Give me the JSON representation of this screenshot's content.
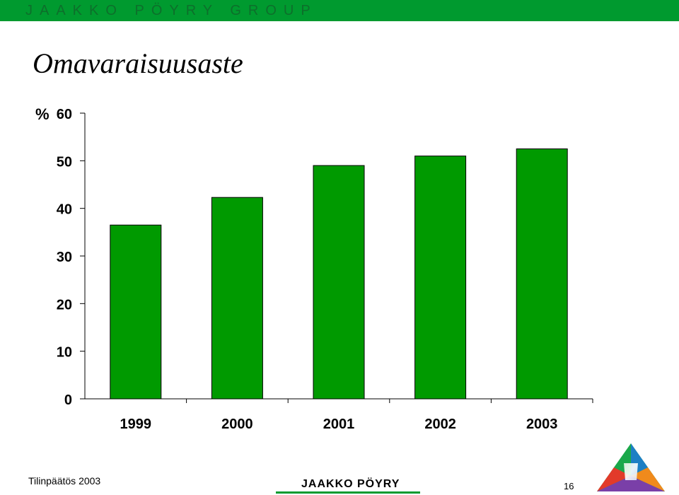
{
  "header": {
    "brand": "JAAKKO PÖYRY GROUP",
    "bar_color": "#009a2f"
  },
  "title": "Omavaraisuusaste",
  "chart_data": {
    "type": "bar",
    "categories": [
      "1999",
      "2000",
      "2001",
      "2002",
      "2003"
    ],
    "values": [
      36.5,
      42.3,
      49.0,
      51.0,
      52.5
    ],
    "title": "Omavaraisuusaste",
    "xlabel": "",
    "ylabel": "%",
    "ylim": [
      0,
      60
    ],
    "yticks": [
      0,
      10,
      20,
      30,
      40,
      50,
      60
    ],
    "bar_color": "#009a00",
    "grid": false,
    "legend": "none"
  },
  "footer": {
    "left_text": "Tilinpäätös 2003",
    "logo_text": "JAAKKO PÖYRY",
    "page_number": "16"
  }
}
